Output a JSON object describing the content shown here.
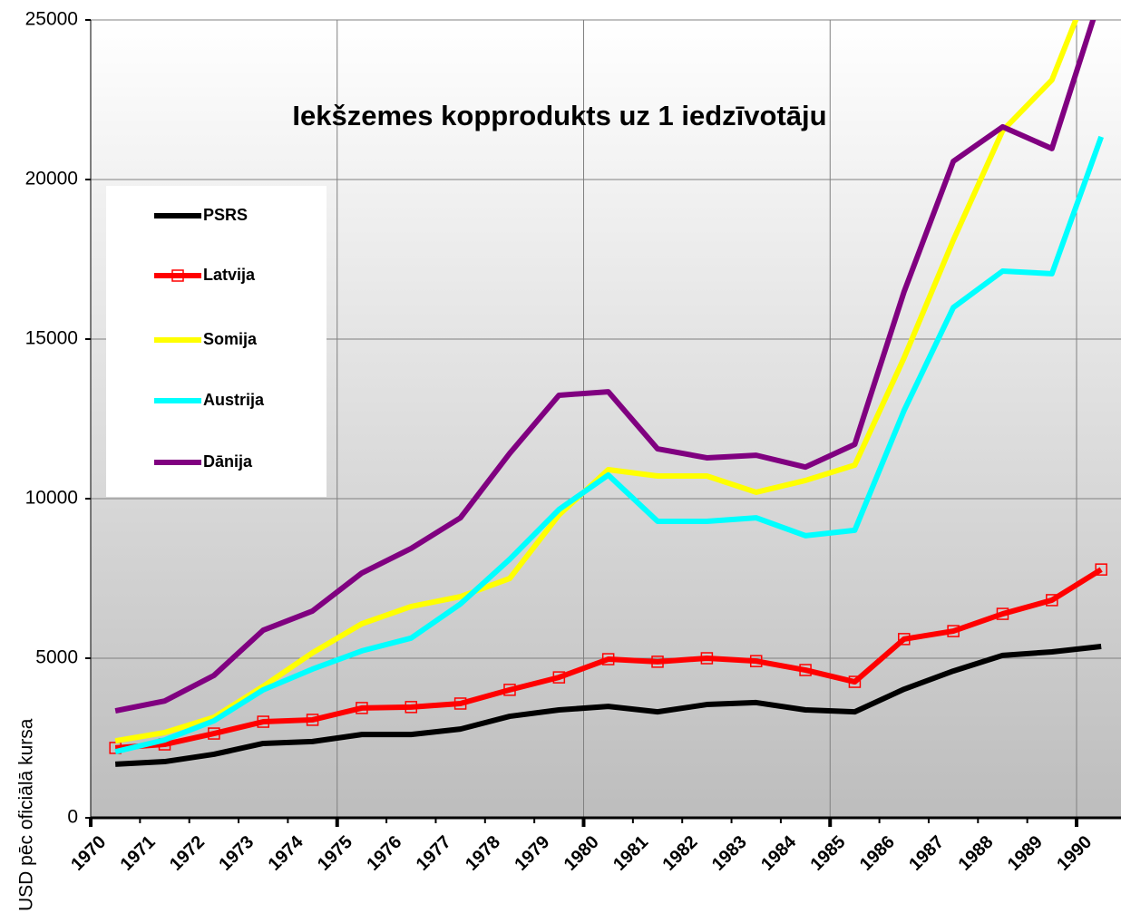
{
  "chart_data": {
    "type": "line",
    "title": "Iekšzemes kopprodukts uz 1 iedzīvotāju",
    "y_label": "USD pēc oficiālā kursa",
    "categories": [
      "1970",
      "1971",
      "1972",
      "1973",
      "1974",
      "1975",
      "1976",
      "1977",
      "1978",
      "1979",
      "1980",
      "1981",
      "1982",
      "1983",
      "1984",
      "1985",
      "1986",
      "1987",
      "1988",
      "1989",
      "1990"
    ],
    "series": [
      {
        "name": "PSRS",
        "color": "#000000",
        "values": [
          1680,
          1760,
          1990,
          2330,
          2390,
          2610,
          2610,
          2780,
          3180,
          3380,
          3490,
          3320,
          3550,
          3610,
          3380,
          3320,
          4030,
          4600,
          5090,
          5200,
          5370
        ]
      },
      {
        "name": "Latvija",
        "color": "#ff0000",
        "marker": "square",
        "values": [
          2190,
          2300,
          2640,
          3010,
          3070,
          3440,
          3470,
          3580,
          4010,
          4400,
          4970,
          4890,
          5000,
          4910,
          4630,
          4260,
          5600,
          5850,
          6390,
          6820,
          7780
        ]
      },
      {
        "name": "Somija",
        "color": "#ffff00",
        "values": [
          2410,
          2670,
          3150,
          4120,
          5170,
          6080,
          6620,
          6930,
          7500,
          9490,
          10910,
          10710,
          10710,
          10200,
          10570,
          11050,
          14410,
          18100,
          21530,
          23120,
          27000
        ]
      },
      {
        "name": "Austrija",
        "color": "#00ffff",
        "values": [
          2070,
          2440,
          3040,
          4010,
          4660,
          5230,
          5630,
          6700,
          8100,
          9660,
          10740,
          9290,
          9290,
          9400,
          8840,
          9010,
          12760,
          15990,
          17130,
          17050,
          21340
        ]
      },
      {
        "name": "Dānija",
        "color": "#800080",
        "values": [
          3350,
          3660,
          4460,
          5880,
          6480,
          7670,
          8440,
          9400,
          11420,
          13240,
          13350,
          11560,
          11280,
          11360,
          10990,
          11700,
          16480,
          20570,
          21650,
          20970,
          25800
        ]
      }
    ],
    "ylim": [
      0,
      25000
    ],
    "yticks": [
      0,
      5000,
      10000,
      15000,
      20000,
      25000
    ],
    "grid": true,
    "legend": "upper-left"
  }
}
